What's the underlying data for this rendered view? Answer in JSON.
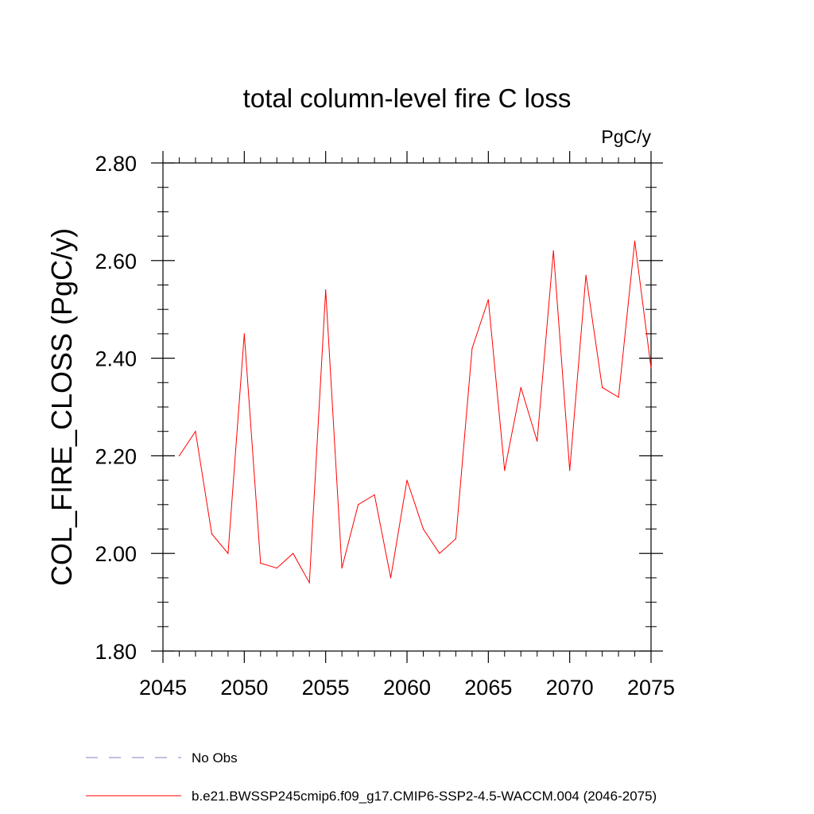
{
  "chart_data": {
    "type": "line",
    "title": "total column-level fire C loss",
    "units": "PgC/y",
    "ylabel": "COL_FIRE_CLOSS  (PgC/y)",
    "xlabel": "",
    "xlim": [
      2045,
      2075
    ],
    "ylim": [
      1.8,
      2.8
    ],
    "x_ticks": [
      2045,
      2050,
      2055,
      2060,
      2065,
      2070,
      2075
    ],
    "x_tick_labels": [
      "2045",
      "2050",
      "2055",
      "2060",
      "2065",
      "2070",
      "2075"
    ],
    "y_ticks": [
      1.8,
      2.0,
      2.2,
      2.4,
      2.6,
      2.8
    ],
    "y_tick_labels": [
      "1.80",
      "2.00",
      "2.20",
      "2.40",
      "2.60",
      "2.80"
    ],
    "grid": false,
    "legend_position": "bottom",
    "legend": [
      {
        "label": "No Obs",
        "style": "dashed",
        "color": "#8080c0"
      },
      {
        "label": "b.e21.BWSSP245cmip6.f09_g17.CMIP6-SSP2-4.5-WACCM.004 (2046-2075)",
        "style": "solid",
        "color": "#ff0000"
      }
    ],
    "series": [
      {
        "name": "b.e21.BWSSP245cmip6.f09_g17.CMIP6-SSP2-4.5-WACCM.004 (2046-2075)",
        "color": "#ff0000",
        "x": [
          2046,
          2047,
          2048,
          2049,
          2050,
          2051,
          2052,
          2053,
          2054,
          2055,
          2056,
          2057,
          2058,
          2059,
          2060,
          2061,
          2062,
          2063,
          2064,
          2065,
          2066,
          2067,
          2068,
          2069,
          2070,
          2071,
          2072,
          2073,
          2074,
          2075
        ],
        "y": [
          2.2,
          2.25,
          2.04,
          2.0,
          2.45,
          1.98,
          1.97,
          2.0,
          1.94,
          2.54,
          1.97,
          2.1,
          2.12,
          1.95,
          2.15,
          2.05,
          2.0,
          2.03,
          2.42,
          2.52,
          2.17,
          2.34,
          2.23,
          2.62,
          2.17,
          2.57,
          2.34,
          2.32,
          2.64,
          2.38
        ]
      }
    ]
  }
}
